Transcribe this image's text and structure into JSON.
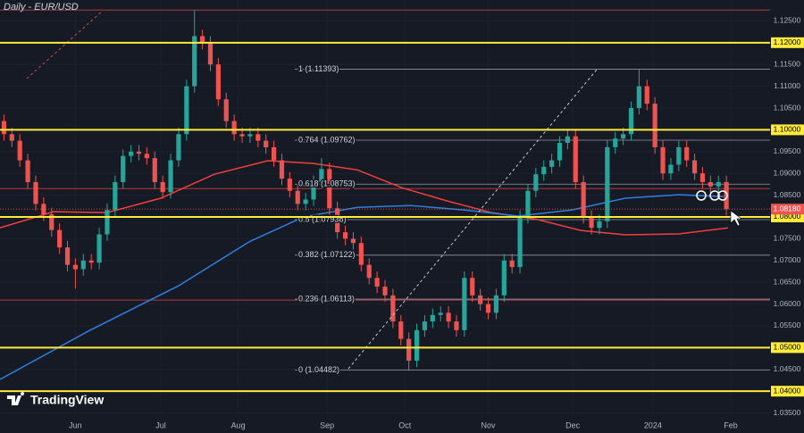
{
  "chart_data": {
    "type": "candlestick",
    "title": "Daily - EUR/USD",
    "watermark": "TradingView",
    "xlim": [
      0,
      194
    ],
    "ylim": [
      1.0304,
      1.1298
    ],
    "xticks": [
      {
        "value": 19,
        "label": "Jun"
      },
      {
        "value": 40.5,
        "label": "Jul"
      },
      {
        "value": 60,
        "label": "Aug"
      },
      {
        "value": 82.4,
        "label": "Sep"
      },
      {
        "value": 102,
        "label": "Oct"
      },
      {
        "value": 123,
        "label": "Nov"
      },
      {
        "value": 144.3,
        "label": "Dec"
      },
      {
        "value": 164.5,
        "label": "2024"
      },
      {
        "value": 184.1,
        "label": "Feb"
      }
    ],
    "yticks": [
      {
        "value": 1.035,
        "label": "1.03500"
      },
      {
        "value": 1.04,
        "label": "1.04000"
      },
      {
        "value": 1.045,
        "label": "1.04500"
      },
      {
        "value": 1.05,
        "label": "1.05000"
      },
      {
        "value": 1.055,
        "label": "1.05500"
      },
      {
        "value": 1.06,
        "label": "1.06000"
      },
      {
        "value": 1.065,
        "label": "1.06500"
      },
      {
        "value": 1.07,
        "label": "1.07000"
      },
      {
        "value": 1.075,
        "label": "1.07500"
      },
      {
        "value": 1.08,
        "label": "1.08000"
      },
      {
        "value": 1.085,
        "label": "1.08500"
      },
      {
        "value": 1.09,
        "label": "1.09000"
      },
      {
        "value": 1.095,
        "label": "1.09500"
      },
      {
        "value": 1.1,
        "label": "1.10000"
      },
      {
        "value": 1.105,
        "label": "1.10500"
      },
      {
        "value": 1.11,
        "label": "1.11000"
      },
      {
        "value": 1.115,
        "label": "1.11500"
      },
      {
        "value": 1.12,
        "label": "1.12000"
      },
      {
        "value": 1.125,
        "label": "1.12500"
      }
    ],
    "grid": true,
    "up_color": "#26a69a",
    "down_color": "#ef5350",
    "highlight_levels": [
      1.12,
      1.1,
      1.08,
      1.05,
      1.04
    ],
    "highlight_color": "#ffeb3b",
    "red_levels": [
      1.1275,
      1.0865,
      1.0609
    ],
    "last_price": {
      "value": 1.0818,
      "label": "1.08180"
    },
    "fib_levels": [
      {
        "value": 1.11393,
        "label": "1 (1.11393)"
      },
      {
        "value": 1.09762,
        "label": "0.764 (1.09762)"
      },
      {
        "value": 1.08753,
        "label": "0.618 (1.08753)"
      },
      {
        "value": 1.07938,
        "label": "0.5 (1.07938)"
      },
      {
        "value": 1.07122,
        "label": "0.382 (1.07122)"
      },
      {
        "value": 1.06113,
        "label": "0.236 (1.06113)"
      },
      {
        "value": 1.04482,
        "label": "0 (1.04482)"
      }
    ],
    "x": [
      1,
      3,
      5,
      7,
      9,
      11,
      13,
      15,
      17,
      19,
      21,
      23,
      25,
      27,
      29,
      31,
      33,
      35,
      37,
      39,
      41,
      43,
      45,
      47,
      49,
      51,
      53,
      55,
      57,
      59,
      61,
      63,
      65,
      67,
      69,
      71,
      73,
      75,
      77,
      79,
      81,
      83,
      85,
      87,
      89,
      91,
      93,
      95,
      97,
      99,
      101,
      103,
      105,
      107,
      109,
      111,
      113,
      115,
      117,
      119,
      121,
      123,
      125,
      127,
      129,
      131,
      133,
      135,
      137,
      139,
      141,
      143,
      145,
      147,
      149,
      151,
      153,
      155,
      157,
      159,
      161,
      163,
      165,
      167,
      169,
      171,
      173,
      175,
      177,
      179,
      181,
      183
    ],
    "open": [
      1.102,
      1.099,
      1.0975,
      1.093,
      1.088,
      1.083,
      1.0806,
      1.077,
      1.073,
      1.069,
      1.068,
      1.07,
      1.0695,
      1.076,
      1.0816,
      1.088,
      1.094,
      1.095,
      1.0945,
      1.0935,
      1.088,
      1.0857,
      1.093,
      1.099,
      1.11,
      1.1215,
      1.12,
      1.115,
      1.107,
      1.102,
      1.099,
      1.0985,
      1.099,
      1.0975,
      1.096,
      1.093,
      1.0888,
      1.086,
      1.083,
      1.084,
      1.088,
      1.091,
      1.082,
      1.0765,
      1.075,
      1.074,
      1.069,
      1.066,
      1.064,
      1.062,
      1.056,
      1.052,
      1.047,
      1.054,
      1.056,
      1.0575,
      1.058,
      1.056,
      1.054,
      1.066,
      1.062,
      1.06,
      1.058,
      1.062,
      1.07,
      1.0685,
      1.08,
      1.086,
      1.0898,
      1.0915,
      1.093,
      1.097,
      1.0985,
      1.088,
      1.08,
      1.0775,
      1.079,
      1.096,
      1.098,
      1.099,
      1.105,
      1.11,
      1.106,
      1.096,
      1.09,
      1.092,
      1.096,
      1.093,
      1.09,
      1.088,
      1.087,
      1.088
    ],
    "high": [
      1.1035,
      1.1005,
      1.099,
      1.0945,
      1.0895,
      1.0845,
      1.0821,
      1.0785,
      1.0745,
      1.0705,
      1.0715,
      1.0715,
      1.0775,
      1.0831,
      1.0895,
      1.0955,
      1.0965,
      1.0965,
      1.096,
      1.095,
      1.0895,
      1.0945,
      1.1005,
      1.1115,
      1.1275,
      1.123,
      1.1215,
      1.1165,
      1.1085,
      1.1035,
      1.1005,
      1.1005,
      1.1005,
      1.099,
      1.0975,
      1.0945,
      1.0903,
      1.0875,
      1.0855,
      1.0895,
      1.0935,
      1.0925,
      1.0835,
      1.078,
      1.0765,
      1.0755,
      1.0705,
      1.0675,
      1.0655,
      1.0635,
      1.0575,
      1.0535,
      1.0555,
      1.0575,
      1.059,
      1.0595,
      1.0595,
      1.0575,
      1.0675,
      1.0675,
      1.0635,
      1.0615,
      1.0635,
      1.0715,
      1.0715,
      1.0815,
      1.0875,
      1.0913,
      1.093,
      1.0945,
      1.0985,
      1.1,
      1.1,
      1.0895,
      1.0815,
      1.0805,
      1.0975,
      1.0995,
      1.1005,
      1.1065,
      1.1139,
      1.1115,
      1.1075,
      1.0975,
      1.0935,
      1.0975,
      1.0975,
      1.0945,
      1.0915,
      1.0895,
      1.0895,
      1.0895
    ],
    "low": [
      1.0975,
      1.096,
      1.0915,
      1.0865,
      1.0815,
      1.0791,
      1.0755,
      1.0715,
      1.0675,
      1.0635,
      1.0665,
      1.068,
      1.068,
      1.0745,
      1.0801,
      1.0865,
      1.0925,
      1.093,
      1.092,
      1.0865,
      1.0842,
      1.0842,
      1.0915,
      1.0975,
      1.1085,
      1.1185,
      1.1135,
      1.1055,
      1.1005,
      1.0975,
      1.097,
      1.097,
      1.096,
      1.0945,
      1.0915,
      1.0873,
      1.0845,
      1.0815,
      1.0815,
      1.0825,
      1.0865,
      1.0805,
      1.075,
      1.0735,
      1.0725,
      1.0675,
      1.0645,
      1.0625,
      1.0605,
      1.0545,
      1.0505,
      1.0448,
      1.0455,
      1.0525,
      1.0545,
      1.056,
      1.0545,
      1.0525,
      1.0525,
      1.0605,
      1.0585,
      1.0565,
      1.0565,
      1.0605,
      1.067,
      1.067,
      1.0785,
      1.0845,
      1.0883,
      1.09,
      1.0915,
      1.0955,
      1.0865,
      1.0785,
      1.076,
      1.076,
      1.0775,
      1.0945,
      1.0965,
      1.0975,
      1.1035,
      1.1045,
      1.0945,
      1.0885,
      1.0885,
      1.0905,
      1.0915,
      1.0885,
      1.0865,
      1.0855,
      1.0855,
      1.0803
    ],
    "close": [
      1.099,
      1.0975,
      1.093,
      1.088,
      1.083,
      1.0806,
      1.077,
      1.073,
      1.069,
      1.068,
      1.07,
      1.0695,
      1.076,
      1.0816,
      1.088,
      1.094,
      1.095,
      1.0945,
      1.0935,
      1.088,
      1.0857,
      1.093,
      1.099,
      1.11,
      1.1215,
      1.12,
      1.115,
      1.107,
      1.102,
      1.099,
      1.0985,
      1.099,
      1.0975,
      1.096,
      1.093,
      1.0888,
      1.086,
      1.083,
      1.084,
      1.088,
      1.091,
      1.082,
      1.0765,
      1.075,
      1.074,
      1.069,
      1.066,
      1.064,
      1.062,
      1.056,
      1.052,
      1.047,
      1.054,
      1.056,
      1.0575,
      1.058,
      1.056,
      1.054,
      1.066,
      1.062,
      1.06,
      1.058,
      1.062,
      1.07,
      1.0685,
      1.08,
      1.086,
      1.0898,
      1.0915,
      1.093,
      1.097,
      1.0985,
      1.088,
      1.08,
      1.0775,
      1.079,
      1.096,
      1.098,
      1.099,
      1.105,
      1.11,
      1.106,
      1.096,
      1.09,
      1.092,
      1.096,
      1.093,
      1.09,
      1.088,
      1.087,
      1.088,
      1.0818
    ],
    "series": [
      {
        "color": "#f0403c",
        "x": [
          0,
          13.5,
          27,
          40.5,
          54,
          67.5,
          78.8,
          90,
          101.3,
          112.5,
          123.8,
          135,
          146.3,
          157.5,
          171,
          183.4
        ],
        "values": [
          1.0775,
          1.0812,
          1.081,
          1.0843,
          1.0898,
          1.0929,
          1.0923,
          1.0908,
          1.0867,
          1.0837,
          1.081,
          1.0795,
          1.0769,
          1.0759,
          1.0761,
          1.0775
        ]
      },
      {
        "color": "#2f7fe0",
        "x": [
          0,
          22.5,
          45,
          63,
          76.5,
          90,
          103.5,
          117,
          130.5,
          144,
          157.5,
          171,
          182.3
        ],
        "values": [
          1.0427,
          1.0539,
          1.0642,
          1.0744,
          1.08,
          1.0822,
          1.0826,
          1.0816,
          1.0802,
          1.0816,
          1.0843,
          1.0851,
          1.0847
        ]
      }
    ]
  }
}
